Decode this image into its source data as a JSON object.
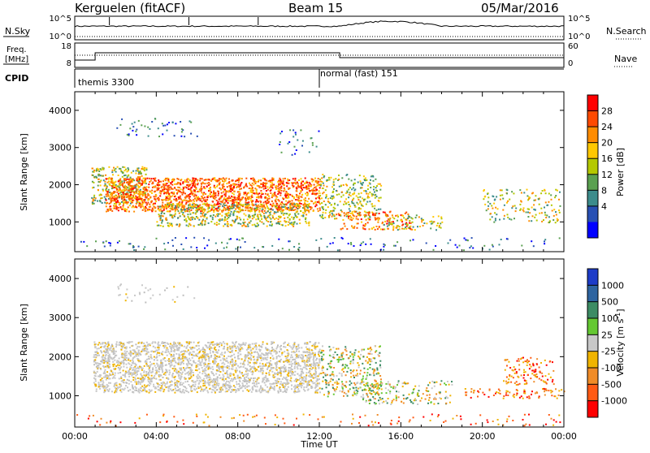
{
  "header": {
    "station": "Kerguelen (fitACF)",
    "beam": "Beam 15",
    "date": "05/Mar/2016"
  },
  "sky_panel": {
    "left_label": "N.Sky",
    "right_label": "N.Search",
    "left_ticks": [
      "10^5",
      "10^0"
    ],
    "right_ticks": [
      "10^5",
      "10^0"
    ]
  },
  "freq_panel": {
    "left_label_1": "Freq.",
    "left_label_2": "[MHz]",
    "right_label": "Nave",
    "left_ticks": [
      "18",
      "8"
    ],
    "right_ticks": [
      "60",
      "0"
    ]
  },
  "cpid_panel": {
    "label": "CPID",
    "modes": [
      {
        "name": "themis 3300",
        "start_hour": 0
      },
      {
        "name": "normal (fast) 151",
        "start_hour": 12
      }
    ]
  },
  "chart_data": [
    {
      "type": "heatmap",
      "name": "power",
      "ylabel": "Slant Range [km]",
      "xlabel": "",
      "ylim": [
        200,
        4500
      ],
      "yticks": [
        "1000",
        "2000",
        "3000",
        "4000"
      ],
      "colorbar_label": "Power [dB]",
      "colorbar_ticks": [
        "28",
        "24",
        "20",
        "16",
        "12",
        "8",
        "4"
      ],
      "colorbar_colors": [
        "#ff0000",
        "#ff4a00",
        "#ff8c00",
        "#ffc800",
        "#b4c800",
        "#5aa050",
        "#3c8c8c",
        "#2850b4",
        "#0000ff"
      ]
    },
    {
      "type": "heatmap",
      "name": "velocity",
      "ylabel": "Slant Range [km]",
      "xlabel": "Time UT",
      "xlim": [
        "00:00",
        "24:00"
      ],
      "xticks": [
        "00:00",
        "04:00",
        "08:00",
        "12:00",
        "16:00",
        "20:00",
        "00:00"
      ],
      "ylim": [
        200,
        4500
      ],
      "yticks": [
        "1000",
        "2000",
        "3000",
        "4000"
      ],
      "colorbar_label": "Velocity [m s",
      "colorbar_label_sup": "-1",
      "colorbar_label_end": "]",
      "colorbar_ticks": [
        "1000",
        "500",
        "100",
        "25",
        "-25",
        "-100",
        "-500",
        "-1000"
      ],
      "colorbar_colors": [
        "#1e3cc8",
        "#2e64a0",
        "#3c8c64",
        "#64c832",
        "#c8c8c8",
        "#f0b400",
        "#f08c28",
        "#ff5a14",
        "#ff0000"
      ]
    }
  ]
}
